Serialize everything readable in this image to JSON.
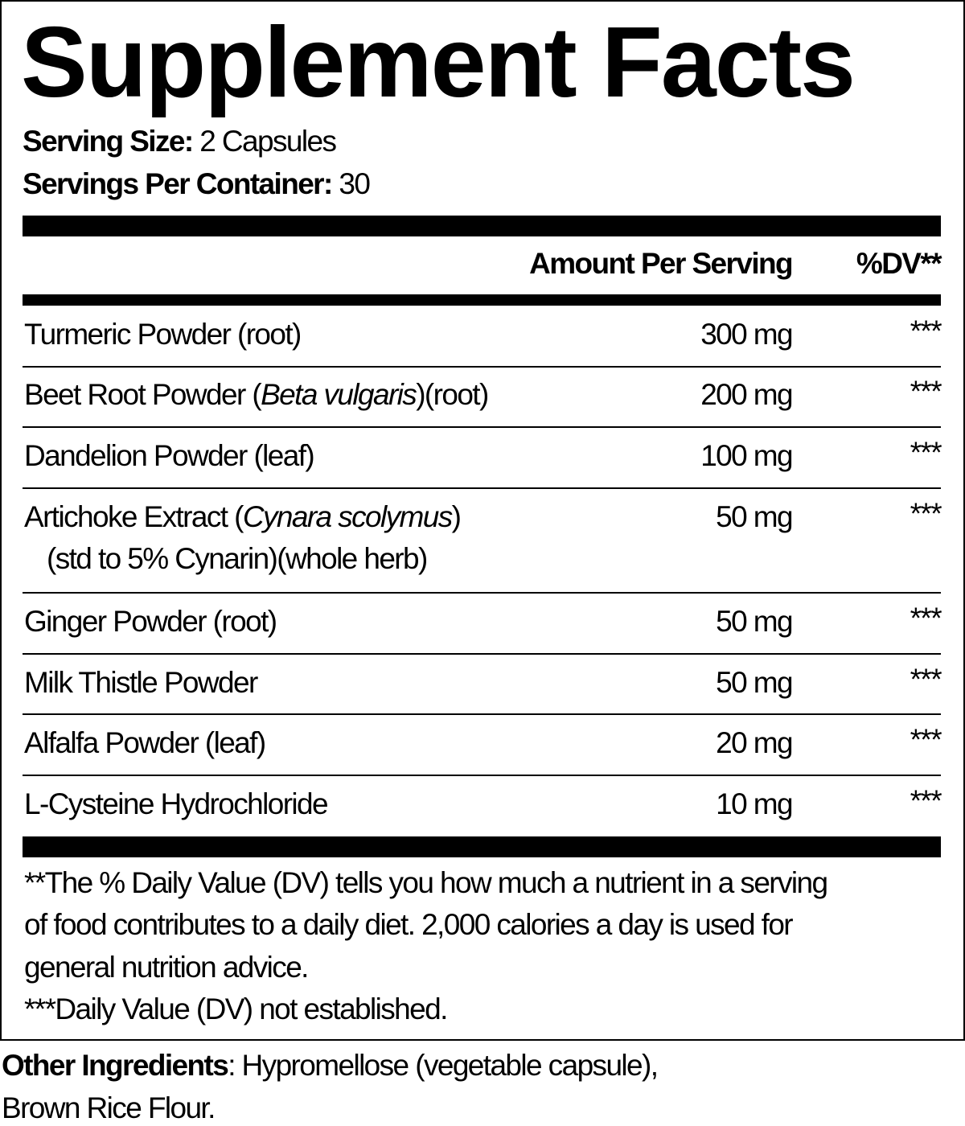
{
  "title": "Supplement Facts",
  "serving": {
    "size_label": "Serving Size:",
    "size_value": "2 Capsules",
    "per_container_label": "Servings Per Container:",
    "per_container_value": "30"
  },
  "table": {
    "header_amount": "Amount Per Serving",
    "header_dv": "%DV**",
    "rows": [
      {
        "name": "Turmeric Powder (root)",
        "amount": "300 mg",
        "dv": "***"
      },
      {
        "name_pre": "Beet Root Powder (",
        "name_italic": "Beta vulgaris",
        "name_post": ")(root)",
        "amount": "200 mg",
        "dv": "***"
      },
      {
        "name": "Dandelion Powder (leaf)",
        "amount": "100 mg",
        "dv": "***"
      },
      {
        "name_pre": "Artichoke Extract (",
        "name_italic": "Cynara scolymus",
        "name_post": ")",
        "name_line2": "(std to 5% Cynarin)(whole herb)",
        "amount": "50 mg",
        "dv": "***"
      },
      {
        "name": "Ginger Powder (root)",
        "amount": "50 mg",
        "dv": "***"
      },
      {
        "name": "Milk Thistle Powder",
        "amount": "50 mg",
        "dv": "***"
      },
      {
        "name": "Alfalfa Powder (leaf)",
        "amount": "20 mg",
        "dv": "***"
      },
      {
        "name": "L-Cysteine Hydrochloride",
        "amount": "10 mg",
        "dv": "***"
      }
    ]
  },
  "footnotes": {
    "line1": "**The % Daily Value (DV) tells you how much a nutrient in a serving",
    "line2": "of food contributes to a daily diet. 2,000 calories a day is used for",
    "line3": "general nutrition advice.",
    "line4": "***Daily Value (DV) not established."
  },
  "other": {
    "label": "Other Ingredients",
    "value_line1": ": Hypromellose (vegetable capsule),",
    "value_line2": "Brown Rice Flour."
  }
}
